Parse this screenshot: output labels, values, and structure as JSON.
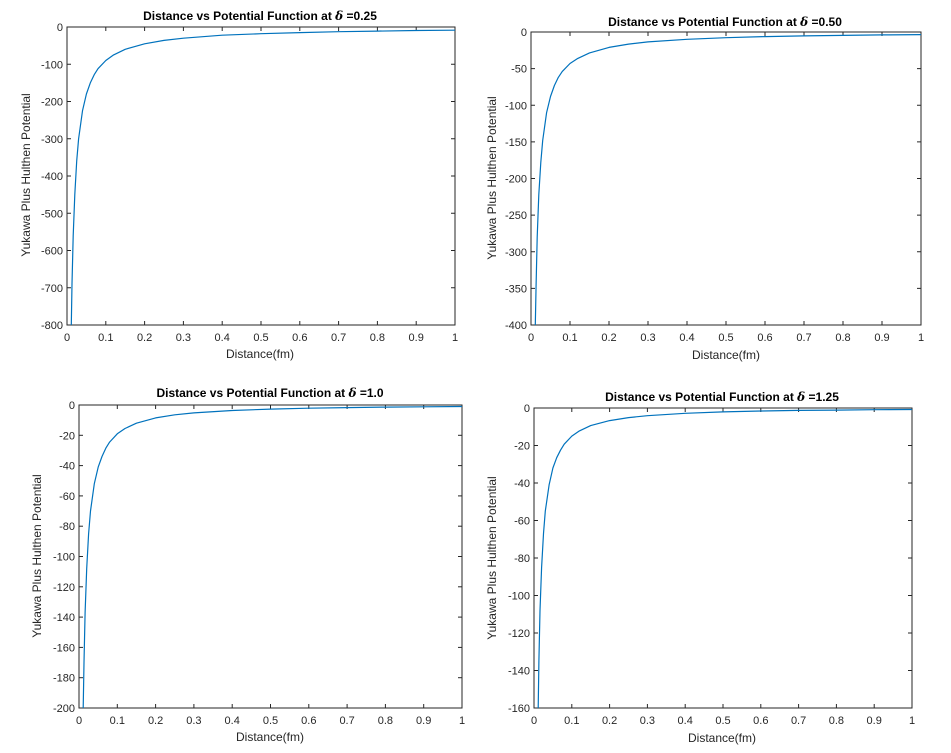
{
  "chart_data": [
    {
      "type": "line",
      "title_prefix": "Distance vs Potential Function at ",
      "title_symbol": "δ",
      "title_suffix": " =0.25",
      "xlabel": "Distance(fm)",
      "ylabel": "Yukawa Plus Hulthen Potential",
      "xlim": [
        0,
        1
      ],
      "ylim": [
        -800,
        0
      ],
      "xticks": [
        "0",
        "0.1",
        "0.2",
        "0.3",
        "0.4",
        "0.5",
        "0.6",
        "0.7",
        "0.8",
        "0.9",
        "1"
      ],
      "yticks": [
        "-800",
        "-700",
        "-600",
        "-500",
        "-400",
        "-300",
        "-200",
        "-100",
        "0"
      ],
      "line_color": "#0072bd",
      "series": [
        {
          "x": [
            0.011,
            0.013,
            0.016,
            0.02,
            0.025,
            0.03,
            0.04,
            0.05,
            0.06,
            0.07,
            0.08,
            0.1,
            0.12,
            0.15,
            0.2,
            0.25,
            0.3,
            0.4,
            0.5,
            0.6,
            0.7,
            0.8,
            0.9,
            1.0
          ],
          "y": [
            -800,
            -690,
            -560,
            -450,
            -360,
            -300,
            -225,
            -180,
            -150,
            -128,
            -112,
            -90,
            -75,
            -60,
            -45,
            -36,
            -30,
            -22,
            -18,
            -15,
            -12.5,
            -11,
            -9.5,
            -8.5
          ]
        }
      ]
    },
    {
      "type": "line",
      "title_prefix": "Distance vs Potential Function at  ",
      "title_symbol": "δ",
      "title_suffix": " =0.50",
      "xlabel": "Distance(fm)",
      "ylabel": "Yukawa Plus Hulthen Potential",
      "xlim": [
        0,
        1
      ],
      "ylim": [
        -400,
        0
      ],
      "xticks": [
        "0",
        "0.1",
        "0.2",
        "0.3",
        "0.4",
        "0.5",
        "0.6",
        "0.7",
        "0.8",
        "0.9",
        "1"
      ],
      "yticks": [
        "-400",
        "-350",
        "-300",
        "-250",
        "-200",
        "-150",
        "-100",
        "-50",
        "0"
      ],
      "line_color": "#0072bd",
      "series": [
        {
          "x": [
            0.011,
            0.013,
            0.016,
            0.02,
            0.025,
            0.03,
            0.04,
            0.05,
            0.06,
            0.07,
            0.08,
            0.1,
            0.12,
            0.15,
            0.2,
            0.25,
            0.3,
            0.4,
            0.5,
            0.6,
            0.7,
            0.8,
            0.9,
            1.0
          ],
          "y": [
            -400,
            -345,
            -280,
            -222,
            -178,
            -148,
            -110,
            -88,
            -73,
            -62,
            -54,
            -43,
            -36,
            -28.5,
            -21,
            -16.5,
            -13.5,
            -10,
            -7.8,
            -6.3,
            -5.3,
            -4.6,
            -4.0,
            -3.5
          ]
        }
      ]
    },
    {
      "type": "line",
      "title_prefix": "Distance vs Potential Function at ",
      "title_symbol": "δ",
      "title_suffix": " =1.0",
      "xlabel": "Distance(fm)",
      "ylabel": "Yukawa Plus Hulthen Potential",
      "xlim": [
        0,
        1
      ],
      "ylim": [
        -200,
        0
      ],
      "xticks": [
        "0",
        "0.1",
        "0.2",
        "0.3",
        "0.4",
        "0.5",
        "0.6",
        "0.7",
        "0.8",
        "0.9",
        "1"
      ],
      "yticks": [
        "-200",
        "-180",
        "-160",
        "-140",
        "-120",
        "-100",
        "-80",
        "-60",
        "-40",
        "-20",
        "0"
      ],
      "line_color": "#0072bd",
      "series": [
        {
          "x": [
            0.011,
            0.013,
            0.016,
            0.02,
            0.025,
            0.03,
            0.04,
            0.05,
            0.06,
            0.07,
            0.08,
            0.1,
            0.12,
            0.15,
            0.2,
            0.25,
            0.3,
            0.4,
            0.5,
            0.6,
            0.7,
            0.8,
            0.9,
            1.0
          ],
          "y": [
            -200,
            -170,
            -137,
            -108,
            -85,
            -70,
            -52,
            -41,
            -34,
            -28.5,
            -24.5,
            -19,
            -15.5,
            -12,
            -8.5,
            -6.5,
            -5.2,
            -3.6,
            -2.7,
            -2.1,
            -1.7,
            -1.4,
            -1.2,
            -1.0
          ]
        }
      ]
    },
    {
      "type": "line",
      "title_prefix": "Distance vs Potential Function at ",
      "title_symbol": "δ",
      "title_suffix": " =1.25",
      "xlabel": "Distance(fm)",
      "ylabel": "Yukawa Plus Hulthen Potential",
      "xlim": [
        0,
        1
      ],
      "ylim": [
        -160,
        0
      ],
      "xticks": [
        "0",
        "0.1",
        "0.2",
        "0.3",
        "0.4",
        "0.5",
        "0.6",
        "0.7",
        "0.8",
        "0.9",
        "1"
      ],
      "yticks": [
        "-160",
        "-140",
        "-120",
        "-100",
        "-80",
        "-60",
        "-40",
        "-20",
        "0"
      ],
      "line_color": "#0072bd",
      "series": [
        {
          "x": [
            0.011,
            0.013,
            0.016,
            0.02,
            0.025,
            0.03,
            0.04,
            0.05,
            0.06,
            0.07,
            0.08,
            0.1,
            0.12,
            0.15,
            0.2,
            0.25,
            0.3,
            0.4,
            0.5,
            0.6,
            0.7,
            0.8,
            0.9,
            1.0
          ],
          "y": [
            -160,
            -135,
            -108,
            -85,
            -67,
            -55,
            -41,
            -32,
            -26.5,
            -22.5,
            -19.3,
            -15,
            -12.2,
            -9.4,
            -6.7,
            -5.1,
            -4.1,
            -2.8,
            -2.1,
            -1.6,
            -1.3,
            -1.1,
            -0.9,
            -0.8
          ]
        }
      ]
    }
  ]
}
